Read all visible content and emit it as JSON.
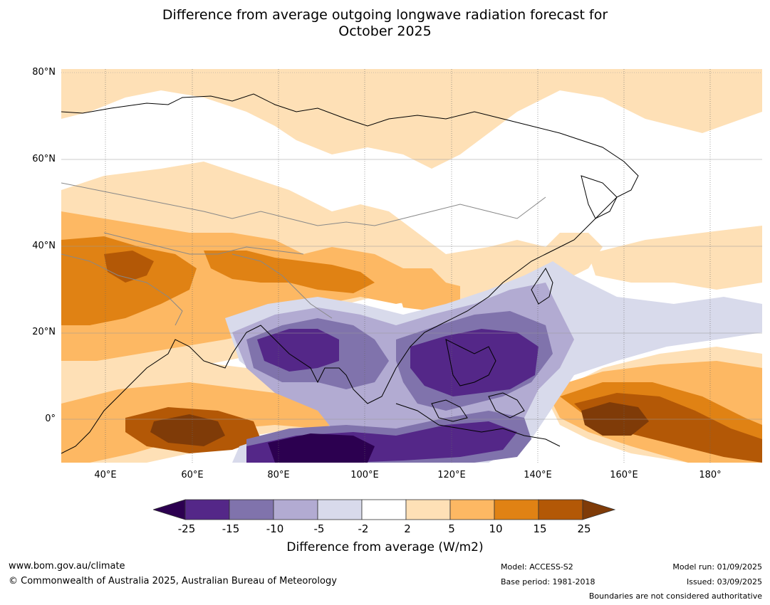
{
  "title_line1": "Difference from average outgoing longwave radiation forecast for",
  "title_line2": "October 2025",
  "lat_labels": [
    "80°N",
    "60°N",
    "40°N",
    "20°N",
    "0°"
  ],
  "lon_labels": [
    "40°E",
    "60°E",
    "80°E",
    "100°E",
    "120°E",
    "140°E",
    "160°E",
    "180°"
  ],
  "colorbar": {
    "ticks": [
      "-25",
      "-15",
      "-10",
      "-5",
      "-2",
      "2",
      "5",
      "10",
      "15",
      "25"
    ],
    "colors": [
      "#2c0050",
      "#542788",
      "#8073ac",
      "#b2abd2",
      "#d8daeb",
      "#ffffff",
      "#fee0b6",
      "#fdb863",
      "#e08214",
      "#b35806",
      "#7f3b08"
    ],
    "title": "Difference from average (W/m2)"
  },
  "footer": {
    "website": "www.bom.gov.au/climate",
    "copyright": "© Commonwealth of Australia 2025, Australian Bureau of Meteorology",
    "model": "Model: ACCESS-S2",
    "base_period": "Base period: 1981-2018",
    "model_run": "Model run: 01/09/2025",
    "issued": "Issued: 03/09/2025",
    "disclaimer": "Boundaries are not considered authoritative"
  }
}
